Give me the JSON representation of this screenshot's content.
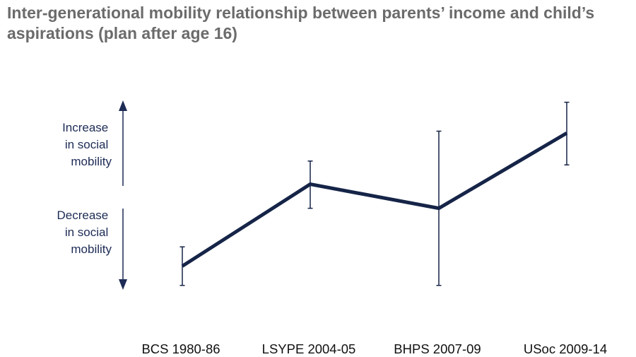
{
  "title": "Inter-generational mobility relationship between parents’ income and child’s aspirations (plan after age 16)",
  "colors": {
    "line": "#152447",
    "title": "#6b6b6b",
    "axis": "#1d2b55"
  },
  "direction_labels": {
    "increase": [
      "Increase",
      "in social",
      "mobility"
    ],
    "decrease": [
      "Decrease",
      "in social",
      "mobility"
    ]
  },
  "chart_data": {
    "type": "line",
    "title": "Inter-generational mobility relationship between parents’ income and child’s aspirations (plan after age 16)",
    "xlabel": "",
    "ylabel": "",
    "categories": [
      "BCS 1980-86",
      "LSYPE 2004-05",
      "BHPS 2007-09",
      "USoc 2009-14"
    ],
    "series": [
      {
        "values": [
          -0.6,
          0.25,
          0.0,
          0.78
        ],
        "error_low": [
          -0.8,
          0.0,
          -0.8,
          0.45
        ],
        "error_high": [
          -0.4,
          0.49,
          0.8,
          1.1
        ]
      }
    ],
    "ylim": [
      -1.0,
      1.2
    ],
    "grid": false,
    "legend": "none"
  }
}
